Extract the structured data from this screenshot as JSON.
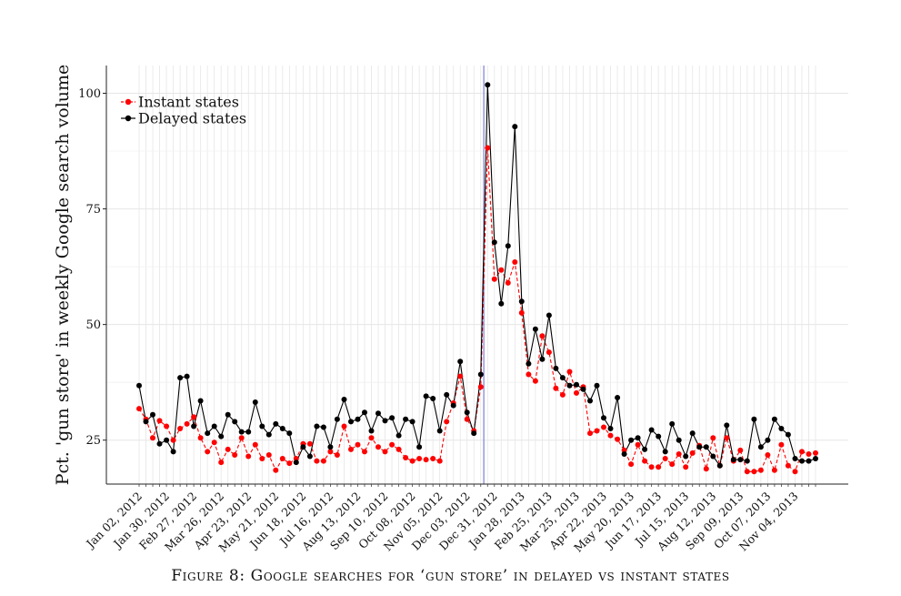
{
  "caption": "Figure 8: Google searches for ‘gun store’ in delayed vs instant states",
  "chart_data": {
    "type": "line",
    "ylabel": "Pct. 'gun store' in weekly Google search volume",
    "xlabel": "",
    "yticks": [
      25,
      50,
      75,
      100
    ],
    "ylim": [
      15.5,
      106
    ],
    "vline_index": 51,
    "colors": {
      "instant": "#ff0000",
      "delayed": "#000000",
      "vline": "#8888dd",
      "grid": "#e6e6e6"
    },
    "legend_position": "top-left",
    "grid": true,
    "xtick_labels": [
      "Jan 02, 2012",
      "Jan 30, 2012",
      "Feb 27, 2012",
      "Mar 26, 2012",
      "Apr 23, 2012",
      "May 21, 2012",
      "Jun 18, 2012",
      "Jul 16, 2012",
      "Aug 13, 2012",
      "Sep 10, 2012",
      "Oct 08, 2012",
      "Nov 05, 2012",
      "Dec 03, 2012",
      "Dec 31, 2012",
      "Jan 28, 2013",
      "Feb 25, 2013",
      "Mar 25, 2013",
      "Apr 22, 2013",
      "May 20, 2013",
      "Jun 17, 2013",
      "Jul 15, 2013",
      "Aug 12, 2013",
      "Sep 09, 2013",
      "Oct 07, 2013",
      "Nov 04, 2013"
    ],
    "xtick_positions": [
      0,
      4,
      8,
      12,
      16,
      20,
      24,
      28,
      32,
      36,
      40,
      44,
      48,
      52,
      56,
      60,
      64,
      68,
      72,
      76,
      80,
      84,
      88,
      92,
      96
    ],
    "series": [
      {
        "name": "Instant states",
        "style": "dashed",
        "values": [
          31.8,
          29.5,
          25.5,
          29.2,
          28.0,
          25.0,
          27.5,
          28.5,
          30.0,
          25.5,
          22.5,
          24.5,
          20.2,
          23.0,
          21.8,
          25.5,
          21.5,
          24.0,
          21.0,
          21.8,
          18.5,
          21.0,
          20.0,
          21.0,
          24.2,
          24.2,
          20.5,
          20.5,
          22.5,
          21.8,
          28.0,
          23.0,
          24.0,
          22.5,
          25.5,
          23.5,
          22.5,
          24.0,
          23.0,
          21.2,
          20.5,
          21.0,
          20.8,
          21.0,
          20.5,
          29.0,
          33.0,
          38.8,
          29.5,
          27.0,
          36.5,
          88.2,
          59.8,
          61.8,
          59.0,
          63.5,
          52.5,
          39.2,
          37.8,
          47.5,
          44.0,
          36.2,
          34.8,
          39.8,
          35.2,
          36.5,
          26.5,
          27.0,
          27.8,
          26.0,
          25.2,
          22.8,
          19.8,
          24.0,
          20.5,
          19.2,
          19.2,
          21.0,
          19.8,
          22.0,
          19.2,
          22.2,
          23.8,
          18.8,
          25.5,
          19.5,
          25.5,
          20.5,
          22.8,
          18.2,
          18.2,
          18.5,
          21.8,
          18.5,
          24.0,
          19.5,
          18.2,
          22.5,
          22.0,
          22.2
        ]
      },
      {
        "name": "Delayed states",
        "style": "solid",
        "values": [
          36.8,
          29.0,
          30.5,
          24.2,
          25.0,
          22.5,
          38.5,
          38.8,
          28.0,
          33.5,
          26.5,
          28.0,
          25.8,
          30.5,
          29.0,
          26.8,
          26.8,
          33.2,
          28.0,
          26.2,
          28.5,
          27.5,
          26.5,
          20.2,
          23.5,
          21.5,
          28.0,
          27.8,
          23.5,
          29.5,
          33.8,
          29.0,
          29.5,
          31.0,
          27.0,
          30.8,
          29.2,
          29.8,
          26.0,
          29.5,
          29.0,
          23.5,
          34.5,
          34.0,
          27.0,
          34.8,
          32.5,
          42.0,
          31.0,
          26.5,
          39.2,
          101.8,
          67.8,
          54.5,
          67.0,
          92.8,
          55.0,
          41.5,
          49.0,
          42.5,
          52.0,
          40.5,
          38.5,
          36.8,
          37.0,
          36.0,
          33.5,
          36.8,
          29.8,
          27.5,
          34.2,
          22.0,
          25.0,
          25.5,
          23.0,
          27.2,
          25.8,
          22.5,
          28.5,
          25.0,
          21.5,
          26.5,
          23.5,
          23.5,
          21.5,
          19.5,
          28.2,
          20.8,
          20.8,
          20.5,
          29.5,
          23.5,
          25.0,
          29.5,
          27.5,
          26.2,
          21.0,
          20.5,
          20.5,
          21.0
        ]
      }
    ]
  }
}
